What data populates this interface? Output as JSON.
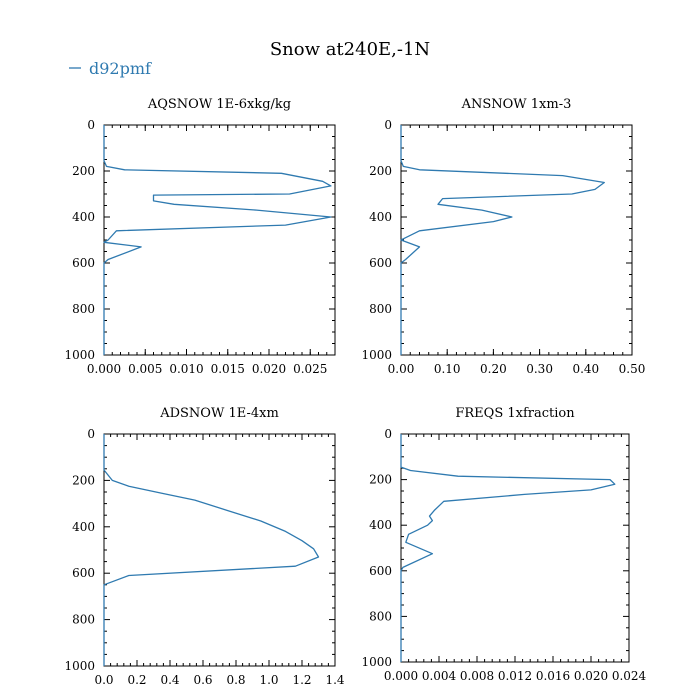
{
  "title": "Snow at240E,-1N",
  "legend": {
    "label": "d92pmf",
    "color": "#2f7ab0"
  },
  "chart_data": [
    {
      "type": "line",
      "title": "AQSNOW  1E-6xkg/kg",
      "xlim": [
        0,
        0.028
      ],
      "ylim": [
        1000,
        0
      ],
      "xticks": [
        "0.000",
        "0.005",
        "0.010",
        "0.015",
        "0.020",
        "0.025"
      ],
      "xtick_values": [
        0,
        0.005,
        0.01,
        0.015,
        0.02,
        0.025
      ],
      "yticks": [
        "0",
        "200",
        "400",
        "600",
        "800",
        "1000"
      ],
      "ytick_values": [
        0,
        200,
        400,
        600,
        800,
        1000
      ],
      "series": [
        {
          "name": "d92pmf",
          "x": [
            0,
            0,
            0.0003,
            0.0025,
            0.0215,
            0.0265,
            0.0275,
            0.0225,
            0.006,
            0.006,
            0.0085,
            0.0185,
            0.0275,
            0.022,
            0.0015,
            0.0005,
            0,
            0.0045,
            0.0005,
            0,
            0,
            0
          ],
          "y": [
            0,
            155,
            180,
            195,
            210,
            245,
            265,
            300,
            305,
            330,
            345,
            370,
            400,
            435,
            460,
            500,
            510,
            530,
            585,
            600,
            620,
            1000
          ]
        }
      ]
    },
    {
      "type": "line",
      "title": "ANSNOW  1xm-3",
      "xlim": [
        0,
        0.5
      ],
      "ylim": [
        1000,
        0
      ],
      "xticks": [
        "0.00",
        "0.10",
        "0.20",
        "0.30",
        "0.40",
        "0.50"
      ],
      "xtick_values": [
        0,
        0.1,
        0.2,
        0.3,
        0.4,
        0.5
      ],
      "yticks": [
        "0",
        "200",
        "400",
        "600",
        "800",
        "1000"
      ],
      "ytick_values": [
        0,
        200,
        400,
        600,
        800,
        1000
      ],
      "series": [
        {
          "name": "d92pmf",
          "x": [
            0,
            0,
            0.005,
            0.04,
            0.35,
            0.44,
            0.42,
            0.37,
            0.09,
            0.08,
            0.175,
            0.24,
            0.2,
            0.04,
            0.01,
            0,
            0.04,
            0.01,
            0,
            0
          ],
          "y": [
            0,
            155,
            180,
            195,
            220,
            250,
            280,
            300,
            320,
            345,
            370,
            400,
            420,
            460,
            490,
            500,
            530,
            585,
            600,
            1000
          ]
        }
      ]
    },
    {
      "type": "line",
      "title": "ADSNOW  1E-4xm",
      "xlim": [
        0,
        1.4
      ],
      "ylim": [
        1000,
        0
      ],
      "xticks": [
        "0.0",
        "0.2",
        "0.4",
        "0.6",
        "0.8",
        "1.0",
        "1.2",
        "1.4"
      ],
      "xtick_values": [
        0,
        0.2,
        0.4,
        0.6,
        0.8,
        1.0,
        1.2,
        1.4
      ],
      "yticks": [
        "0",
        "200",
        "400",
        "600",
        "800",
        "1000"
      ],
      "ytick_values": [
        0,
        200,
        400,
        600,
        800,
        1000
      ],
      "series": [
        {
          "name": "d92pmf",
          "x": [
            0,
            0,
            0.05,
            0.15,
            0.35,
            0.55,
            0.75,
            0.95,
            1.1,
            1.2,
            1.27,
            1.3,
            1.16,
            0.15,
            0,
            0
          ],
          "y": [
            0,
            155,
            200,
            225,
            255,
            285,
            330,
            375,
            420,
            460,
            495,
            530,
            570,
            610,
            650,
            1000
          ]
        }
      ]
    },
    {
      "type": "line",
      "title": "FREQS  1xfraction",
      "xlim": [
        0,
        0.024
      ],
      "ylim": [
        1000,
        0
      ],
      "xticks": [
        "0.000",
        "0.004",
        "0.008",
        "0.012",
        "0.016",
        "0.020",
        "0.024"
      ],
      "xtick_values": [
        0,
        0.004,
        0.008,
        0.012,
        0.016,
        0.02,
        0.024
      ],
      "yticks": [
        "0",
        "200",
        "400",
        "600",
        "800",
        "1000"
      ],
      "ytick_values": [
        0,
        200,
        400,
        600,
        800,
        1000
      ],
      "series": [
        {
          "name": "d92pmf",
          "x": [
            0,
            0,
            0.001,
            0.006,
            0.022,
            0.0225,
            0.02,
            0.013,
            0.0045,
            0.0035,
            0.003,
            0.0033,
            0.0028,
            0.0008,
            0.0005,
            0.0033,
            0.0002,
            0,
            0
          ],
          "y": [
            0,
            145,
            160,
            185,
            200,
            220,
            245,
            265,
            295,
            335,
            360,
            380,
            400,
            440,
            475,
            525,
            585,
            600,
            1000
          ]
        }
      ]
    }
  ]
}
